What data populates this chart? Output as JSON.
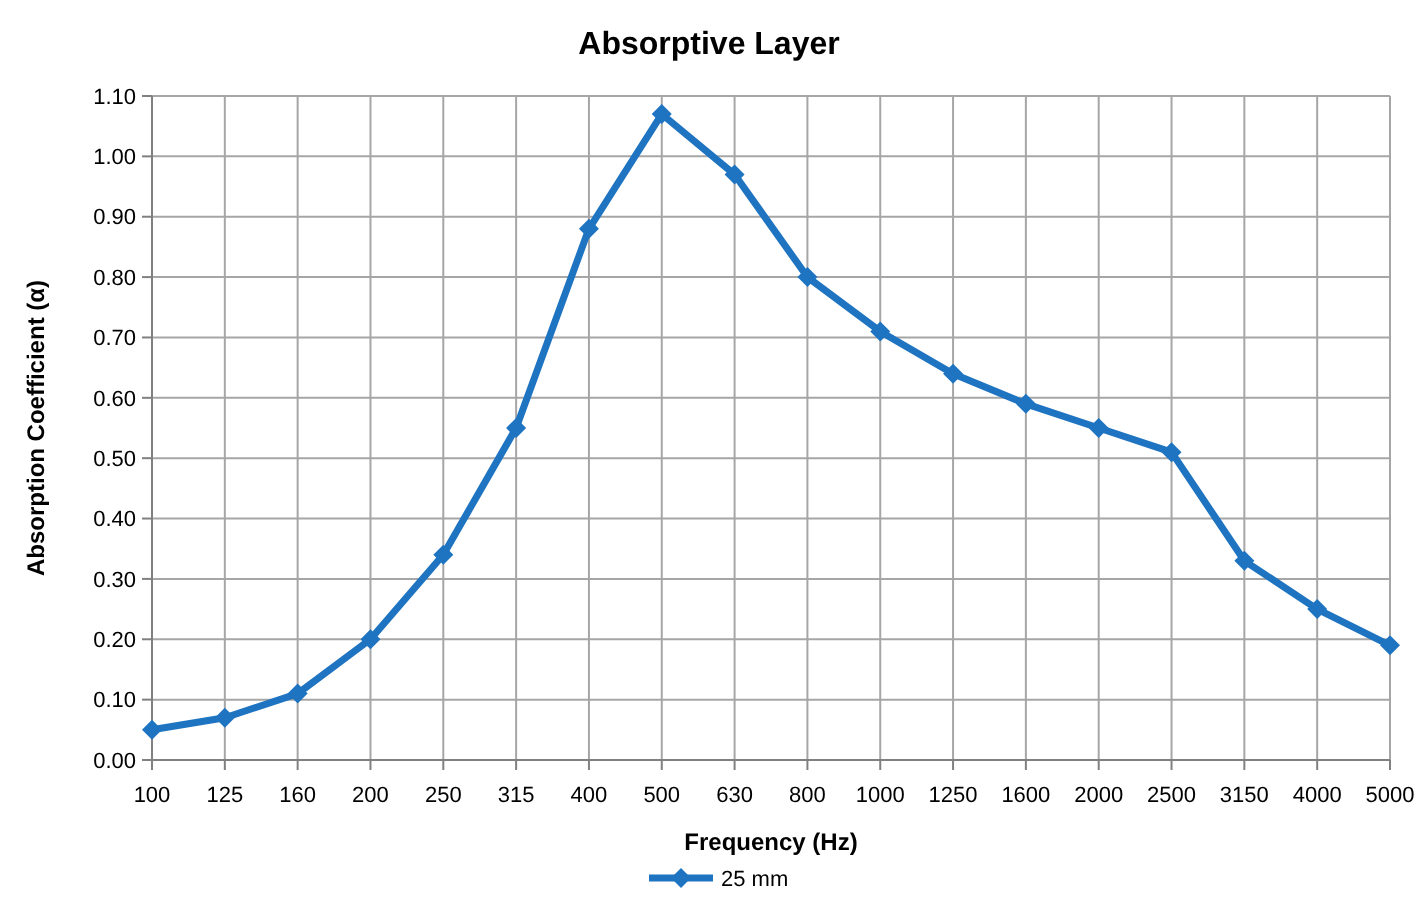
{
  "chart_data": {
    "type": "line",
    "title": "Absorptive Layer",
    "xlabel": "Frequency (Hz)",
    "ylabel": "Absorption Coefficient (α)",
    "categories": [
      "100",
      "125",
      "160",
      "200",
      "250",
      "315",
      "400",
      "500",
      "630",
      "800",
      "1000",
      "1250",
      "1600",
      "2000",
      "2500",
      "3150",
      "4000",
      "5000"
    ],
    "series": [
      {
        "name": "25 mm",
        "color": "#1f74c1",
        "values": [
          0.05,
          0.07,
          0.11,
          0.2,
          0.34,
          0.55,
          0.88,
          1.07,
          0.97,
          0.8,
          0.71,
          0.64,
          0.59,
          0.55,
          0.51,
          0.33,
          0.25,
          0.19
        ]
      }
    ],
    "ylim": [
      0,
      1.1
    ],
    "yticks": [
      {
        "value": 0,
        "label": "0.00"
      },
      {
        "value": 0.1,
        "label": "0.10"
      },
      {
        "value": 0.2,
        "label": "0.20"
      },
      {
        "value": 0.3,
        "label": "0.30"
      },
      {
        "value": 0.4,
        "label": "0.40"
      },
      {
        "value": 0.5,
        "label": "0.50"
      },
      {
        "value": 0.6,
        "label": "0.60"
      },
      {
        "value": 0.7,
        "label": "0.70"
      },
      {
        "value": 0.8,
        "label": "0.80"
      },
      {
        "value": 0.9,
        "label": "0.90"
      },
      {
        "value": 1,
        "label": "1.00"
      },
      {
        "value": 1.1,
        "label": "1.10"
      }
    ],
    "grid": true,
    "legend": "bottom",
    "marker": "diamond",
    "line_style": "solid"
  }
}
